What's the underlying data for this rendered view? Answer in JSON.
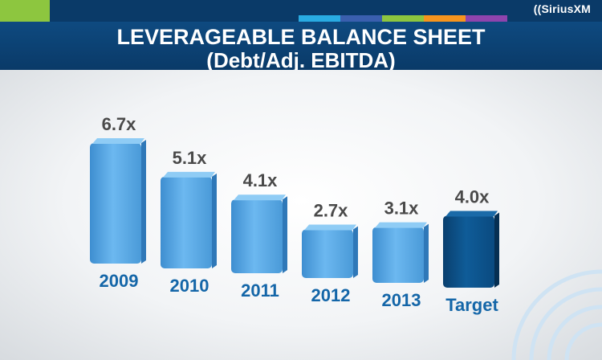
{
  "header": {
    "title": "LEVERAGEABLE BALANCE SHEET",
    "subtitle": "(Debt/Adj. EBITDA)",
    "logo_text": "((SiriusXM"
  },
  "colors": {
    "navy": "#0a3a68",
    "green": "#8dc63f",
    "light_bar": "#5aaae6",
    "dark_bar": "#0a4f86",
    "year_label": "#1466a8",
    "value_label": "#4a4a4a"
  },
  "chart_data": {
    "type": "bar",
    "title": "LEVERAGEABLE BALANCE SHEET",
    "subtitle": "(Debt/Adj. EBITDA)",
    "xlabel": "",
    "ylabel": "",
    "categories": [
      "2009",
      "2010",
      "2011",
      "2012",
      "2013",
      "Target"
    ],
    "values": [
      6.7,
      5.1,
      4.1,
      2.7,
      3.1,
      4.0
    ],
    "value_labels": [
      "6.7x",
      "5.1x",
      "4.1x",
      "2.7x",
      "3.1x",
      "4.0x"
    ],
    "highlight_index": 5,
    "grid": false,
    "legend": "none"
  }
}
